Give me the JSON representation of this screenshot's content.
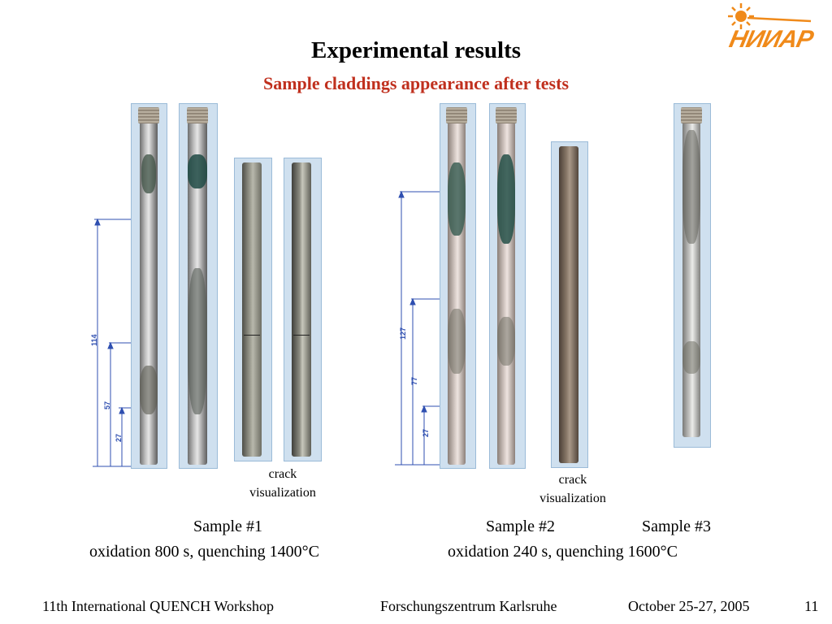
{
  "title": "Experimental results",
  "subtitle": "Sample claddings appearance  after tests",
  "logo": {
    "text": "НИИАР",
    "icon": "sun-logo-icon",
    "color": "#f08a1a"
  },
  "figure_left": {
    "dimensions": [
      "114",
      "57",
      "27"
    ],
    "caption_line1": "crack",
    "caption_line2": "visualization"
  },
  "figure_right": {
    "dimensions": [
      "127",
      "77",
      "27"
    ],
    "caption_line1": "crack",
    "caption_line2": "visualization"
  },
  "samples": {
    "s1_name": "Sample #1",
    "s1_desc": "oxidation 800 s, quenching 1400°C",
    "s2_name": "Sample #2",
    "s3_name": "Sample #3",
    "s23_desc": "oxidation 240 s, quenching 1600°C"
  },
  "footer": {
    "workshop": "11th International QUENCH Workshop",
    "institute": "Forschungszentrum Karlsruhe",
    "date": "October 25-27, 2005",
    "page": "11"
  },
  "colors": {
    "subtitle": "#c0301e",
    "dimension_lines": "#2f4fb0",
    "frame": "#cfe0ef"
  }
}
